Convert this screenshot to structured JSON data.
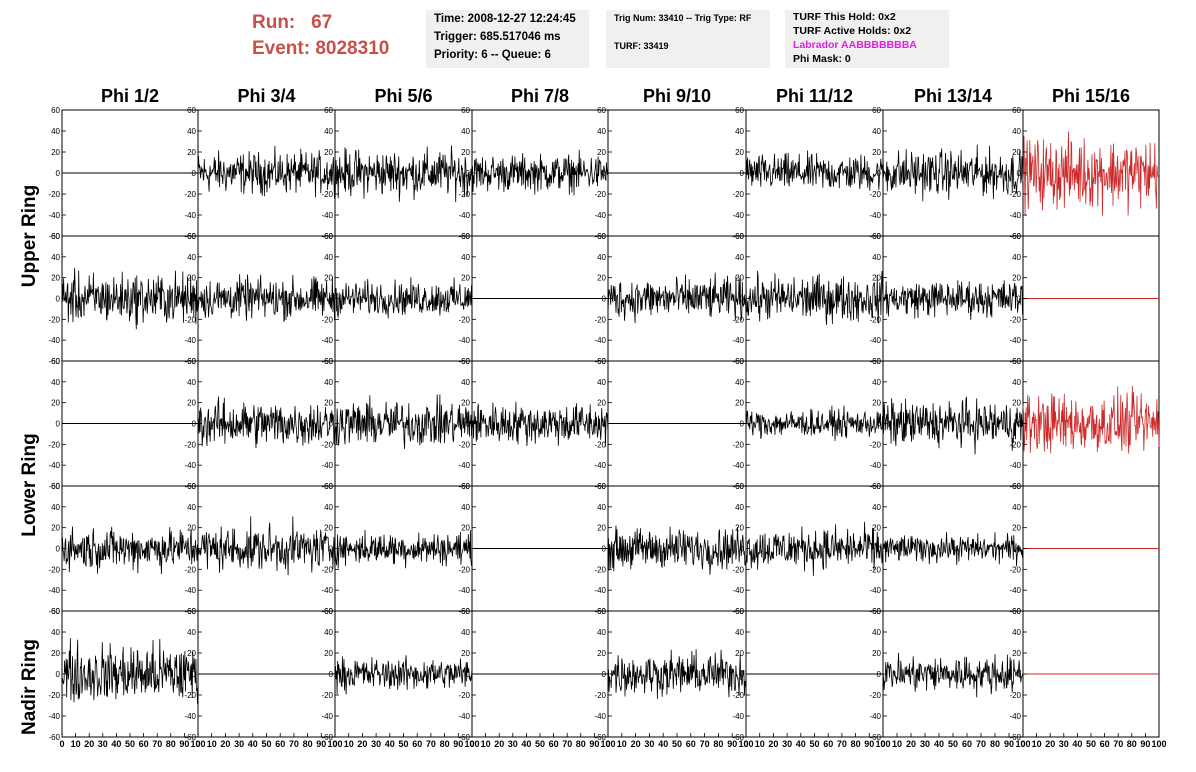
{
  "run": {
    "label": "Run:",
    "value": "67"
  },
  "event": {
    "label": "Event:",
    "value": "8028310"
  },
  "info_box_1": {
    "line1": "Time: 2008-12-27 12:24:45",
    "line2": "Trigger: 685.517046 ms",
    "line3": "Priority: 6 -- Queue: 6"
  },
  "info_box_2": {
    "line1": "Trig Num: 33410 -- Trig Type: RF",
    "line2": "TURF: 33419"
  },
  "info_box_3": {
    "line1": "TURF This Hold: 0x2",
    "line2": "TURF Active Holds: 0x2",
    "line3": "Labrador AABBBBBBBA",
    "line4": "Phi Mask: 0",
    "line3_color": "#e020e0"
  },
  "phi_headers": [
    "Phi 1/2",
    "Phi 3/4",
    "Phi 5/6",
    "Phi 7/8",
    "Phi 9/10",
    "Phi 11/12",
    "Phi 13/14",
    "Phi 15/16"
  ],
  "ring_labels": {
    "upper": "Upper Ring",
    "lower": "Lower Ring",
    "nadir": "Nadir Ring"
  },
  "colors": {
    "trace": "#000000",
    "highlight": "#cc2a2a",
    "run_text": "#c8504a",
    "info_bg": "#f0f0f0"
  },
  "chart_data": {
    "type": "line",
    "ylim": [
      -60,
      60
    ],
    "xlim": [
      0,
      100
    ],
    "yticks": [
      "60",
      "40",
      "20",
      "0",
      "-20",
      "-40",
      "-60"
    ],
    "xticks": [
      "0",
      "10",
      "20",
      "30",
      "40",
      "50",
      "60",
      "70",
      "80",
      "90",
      "100"
    ],
    "grid": false,
    "rows": 5,
    "cols": 8,
    "panels": [
      {
        "row": 0,
        "col": 0,
        "flat": true,
        "amp": 0,
        "color": "black"
      },
      {
        "row": 0,
        "col": 1,
        "flat": false,
        "amp": 18,
        "color": "black"
      },
      {
        "row": 0,
        "col": 2,
        "flat": false,
        "amp": 20,
        "color": "black"
      },
      {
        "row": 0,
        "col": 3,
        "flat": false,
        "amp": 16,
        "color": "black"
      },
      {
        "row": 0,
        "col": 4,
        "flat": true,
        "amp": 0,
        "color": "black"
      },
      {
        "row": 0,
        "col": 5,
        "flat": false,
        "amp": 16,
        "color": "black"
      },
      {
        "row": 0,
        "col": 6,
        "flat": false,
        "amp": 20,
        "color": "black"
      },
      {
        "row": 0,
        "col": 7,
        "flat": false,
        "amp": 30,
        "color": "red"
      },
      {
        "row": 1,
        "col": 0,
        "flat": false,
        "amp": 22,
        "color": "black"
      },
      {
        "row": 1,
        "col": 1,
        "flat": false,
        "amp": 18,
        "color": "black"
      },
      {
        "row": 1,
        "col": 2,
        "flat": false,
        "amp": 15,
        "color": "black"
      },
      {
        "row": 1,
        "col": 3,
        "flat": true,
        "amp": 0,
        "color": "black"
      },
      {
        "row": 1,
        "col": 4,
        "flat": false,
        "amp": 18,
        "color": "black"
      },
      {
        "row": 1,
        "col": 5,
        "flat": false,
        "amp": 20,
        "color": "black"
      },
      {
        "row": 1,
        "col": 6,
        "flat": false,
        "amp": 16,
        "color": "black"
      },
      {
        "row": 1,
        "col": 7,
        "flat": true,
        "amp": 0,
        "color": "red"
      },
      {
        "row": 2,
        "col": 0,
        "flat": true,
        "amp": 0,
        "color": "black"
      },
      {
        "row": 2,
        "col": 1,
        "flat": false,
        "amp": 20,
        "color": "black"
      },
      {
        "row": 2,
        "col": 2,
        "flat": false,
        "amp": 20,
        "color": "black"
      },
      {
        "row": 2,
        "col": 3,
        "flat": false,
        "amp": 18,
        "color": "black"
      },
      {
        "row": 2,
        "col": 4,
        "flat": true,
        "amp": 0,
        "color": "black"
      },
      {
        "row": 2,
        "col": 5,
        "flat": false,
        "amp": 12,
        "color": "black"
      },
      {
        "row": 2,
        "col": 6,
        "flat": false,
        "amp": 20,
        "color": "black"
      },
      {
        "row": 2,
        "col": 7,
        "flat": false,
        "amp": 26,
        "color": "red"
      },
      {
        "row": 3,
        "col": 0,
        "flat": false,
        "amp": 18,
        "color": "black"
      },
      {
        "row": 3,
        "col": 1,
        "flat": false,
        "amp": 20,
        "color": "black"
      },
      {
        "row": 3,
        "col": 2,
        "flat": false,
        "amp": 14,
        "color": "black"
      },
      {
        "row": 3,
        "col": 3,
        "flat": true,
        "amp": 0,
        "color": "black"
      },
      {
        "row": 3,
        "col": 4,
        "flat": false,
        "amp": 18,
        "color": "black"
      },
      {
        "row": 3,
        "col": 5,
        "flat": false,
        "amp": 18,
        "color": "black"
      },
      {
        "row": 3,
        "col": 6,
        "flat": false,
        "amp": 12,
        "color": "black"
      },
      {
        "row": 3,
        "col": 7,
        "flat": true,
        "amp": 0,
        "color": "red"
      },
      {
        "row": 4,
        "col": 0,
        "flat": false,
        "amp": 26,
        "color": "black"
      },
      {
        "row": 4,
        "col": 1,
        "flat": true,
        "amp": 0,
        "color": "black"
      },
      {
        "row": 4,
        "col": 2,
        "flat": false,
        "amp": 14,
        "color": "black"
      },
      {
        "row": 4,
        "col": 3,
        "flat": true,
        "amp": 0,
        "color": "black"
      },
      {
        "row": 4,
        "col": 4,
        "flat": false,
        "amp": 18,
        "color": "black"
      },
      {
        "row": 4,
        "col": 5,
        "flat": true,
        "amp": 0,
        "color": "black"
      },
      {
        "row": 4,
        "col": 6,
        "flat": false,
        "amp": 16,
        "color": "black"
      },
      {
        "row": 4,
        "col": 7,
        "flat": true,
        "amp": 0,
        "color": "red"
      }
    ]
  }
}
